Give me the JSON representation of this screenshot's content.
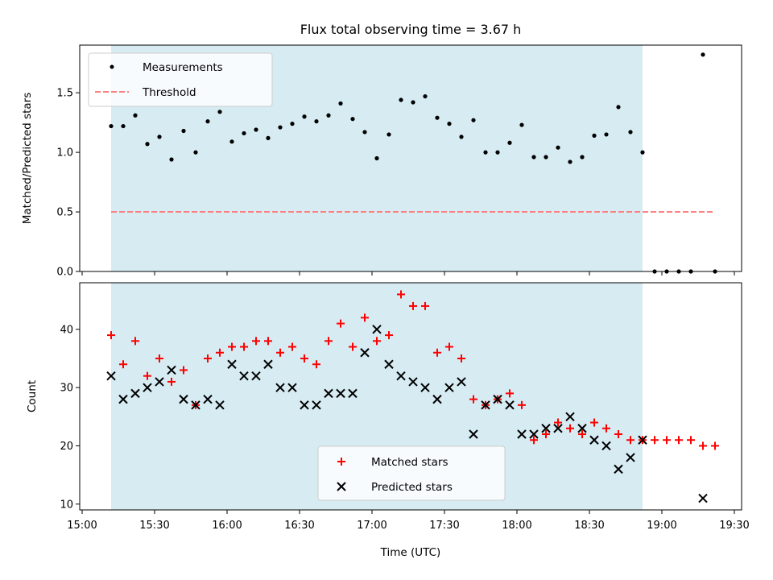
{
  "chart_data": [
    {
      "type": "scatter",
      "title": "Flux total observing time = 3.67 h",
      "xlabel": "",
      "ylabel": "Matched/Predicted stars",
      "ylim": [
        0,
        1.9
      ],
      "yticks": [
        "0.0",
        "0.5",
        "1.0",
        "1.5"
      ],
      "xlim": [
        "14:59",
        "19:33"
      ],
      "shaded_span": [
        "15:12",
        "18:52"
      ],
      "shade_color": "#add8e6",
      "legend_position": "upper-left",
      "series": [
        {
          "name": "Measurements",
          "marker": "dot",
          "color": "#000000",
          "points": [
            [
              "15:12",
              1.22
            ],
            [
              "15:17",
              1.22
            ],
            [
              "15:22",
              1.31
            ],
            [
              "15:27",
              1.07
            ],
            [
              "15:32",
              1.13
            ],
            [
              "15:37",
              0.94
            ],
            [
              "15:42",
              1.18
            ],
            [
              "15:47",
              1.0
            ],
            [
              "15:52",
              1.26
            ],
            [
              "15:57",
              1.34
            ],
            [
              "16:02",
              1.09
            ],
            [
              "16:07",
              1.16
            ],
            [
              "16:12",
              1.19
            ],
            [
              "16:17",
              1.12
            ],
            [
              "16:22",
              1.21
            ],
            [
              "16:27",
              1.24
            ],
            [
              "16:32",
              1.3
            ],
            [
              "16:37",
              1.26
            ],
            [
              "16:42",
              1.31
            ],
            [
              "16:47",
              1.41
            ],
            [
              "16:52",
              1.28
            ],
            [
              "16:57",
              1.17
            ],
            [
              "17:02",
              0.95
            ],
            [
              "17:07",
              1.15
            ],
            [
              "17:12",
              1.44
            ],
            [
              "17:17",
              1.42
            ],
            [
              "17:22",
              1.47
            ],
            [
              "17:27",
              1.29
            ],
            [
              "17:32",
              1.24
            ],
            [
              "17:37",
              1.13
            ],
            [
              "17:42",
              1.27
            ],
            [
              "17:47",
              1.0
            ],
            [
              "17:52",
              1.0
            ],
            [
              "17:57",
              1.08
            ],
            [
              "18:02",
              1.23
            ],
            [
              "18:07",
              0.96
            ],
            [
              "18:12",
              0.96
            ],
            [
              "18:17",
              1.04
            ],
            [
              "18:22",
              0.92
            ],
            [
              "18:27",
              0.96
            ],
            [
              "18:32",
              1.14
            ],
            [
              "18:37",
              1.15
            ],
            [
              "18:42",
              1.38
            ],
            [
              "18:47",
              1.17
            ],
            [
              "18:52",
              1.0
            ],
            [
              "18:57",
              0.0
            ],
            [
              "19:02",
              0.0
            ],
            [
              "19:07",
              0.0
            ],
            [
              "19:12",
              0.0
            ],
            [
              "19:17",
              1.82
            ],
            [
              "19:22",
              0.0
            ]
          ]
        },
        {
          "name": "Threshold",
          "line_style": "dashed",
          "color": "#ff7f7f",
          "points": [
            [
              "15:12",
              0.5
            ],
            [
              "19:22",
              0.5
            ]
          ]
        }
      ]
    },
    {
      "type": "scatter",
      "title": "",
      "xlabel": "Time (UTC)",
      "ylabel": "Count",
      "ylim": [
        9,
        48
      ],
      "yticks": [
        "10",
        "20",
        "30",
        "40"
      ],
      "xticks": [
        "15:00",
        "15:30",
        "16:00",
        "16:30",
        "17:00",
        "17:30",
        "18:00",
        "18:30",
        "19:00",
        "19:30"
      ],
      "xlim": [
        "14:59",
        "19:33"
      ],
      "shaded_span": [
        "15:12",
        "18:52"
      ],
      "shade_color": "#add8e6",
      "legend_position": "lower-center",
      "x": [
        "15:12",
        "15:17",
        "15:22",
        "15:27",
        "15:32",
        "15:37",
        "15:42",
        "15:47",
        "15:52",
        "15:57",
        "16:02",
        "16:07",
        "16:12",
        "16:17",
        "16:22",
        "16:27",
        "16:32",
        "16:37",
        "16:42",
        "16:47",
        "16:52",
        "16:57",
        "17:02",
        "17:07",
        "17:12",
        "17:17",
        "17:22",
        "17:27",
        "17:32",
        "17:37",
        "17:42",
        "17:47",
        "17:52",
        "17:57",
        "18:02",
        "18:07",
        "18:12",
        "18:17",
        "18:22",
        "18:27",
        "18:32",
        "18:37",
        "18:42",
        "18:47",
        "18:52",
        "18:57",
        "19:02",
        "19:07",
        "19:12",
        "19:17",
        "19:22"
      ],
      "series": [
        {
          "name": "Matched stars",
          "marker": "plus",
          "color": "#ff0000",
          "values": [
            39,
            34,
            38,
            32,
            35,
            31,
            33,
            27,
            35,
            36,
            37,
            37,
            38,
            38,
            36,
            37,
            35,
            34,
            38,
            41,
            37,
            42,
            38,
            39,
            46,
            44,
            44,
            36,
            37,
            35,
            28,
            27,
            28,
            29,
            27,
            21,
            22,
            24,
            23,
            22,
            24,
            23,
            22,
            21,
            21,
            21,
            21,
            21,
            21,
            20,
            20
          ]
        },
        {
          "name": "Predicted stars",
          "marker": "x",
          "color": "#000000",
          "values": [
            32,
            28,
            29,
            30,
            31,
            33,
            28,
            27,
            28,
            27,
            34,
            32,
            32,
            34,
            30,
            30,
            27,
            27,
            29,
            29,
            29,
            36,
            40,
            34,
            32,
            31,
            30,
            28,
            30,
            31,
            22,
            27,
            28,
            27,
            22,
            22,
            23,
            23,
            25,
            23,
            21,
            20,
            16,
            18,
            21,
            null,
            null,
            null,
            null,
            11,
            null
          ]
        }
      ]
    }
  ]
}
